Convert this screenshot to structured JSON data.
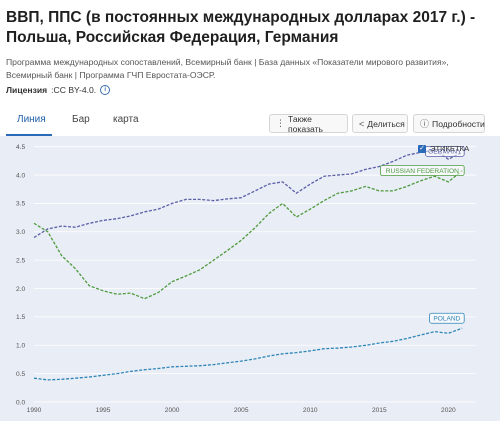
{
  "title": "ВВП, ППС (в постоянных международных долларах 2017 г.) - Польша, Российская Федерация, Германия",
  "source": "Программа международных сопоставлений, Всемирный банк | База данных «Показатели мирового развития», Всемирный банк | Программа ГЧП Евростата-ОЭСР.",
  "license": {
    "label": "Лицензия",
    "value": ":CC BY-4.0.",
    "icon": "info-icon"
  },
  "tabs": [
    {
      "label": "Линия",
      "active": true
    },
    {
      "label": "Бар",
      "active": false
    },
    {
      "label": "карта",
      "active": false
    }
  ],
  "toolbar": {
    "show_also": "Также показать",
    "share": "Делиться",
    "details": "Подробности"
  },
  "legend": {
    "label": "ЭТИКЕТКА",
    "checked": true
  },
  "colors": {
    "germany": "#5a5fa8",
    "russia": "#4e9a3c",
    "poland": "#2d86b8",
    "plot_bg": "#e9edf6",
    "grid": "#ffffff"
  },
  "chart_data": {
    "type": "line",
    "ylim": [
      0,
      4.6
    ],
    "xlim": [
      1990,
      2022
    ],
    "x_ticks": [
      "1990",
      "1995",
      "2000",
      "2005",
      "2010",
      "2015",
      "2020"
    ],
    "y_ticks": [
      "0.0",
      "0.5",
      "1.0",
      "1.5",
      "2.0",
      "2.5",
      "3.0",
      "3.5",
      "4.0",
      "4.5"
    ],
    "years": [
      1990,
      1991,
      1992,
      1993,
      1994,
      1995,
      1996,
      1997,
      1998,
      1999,
      2000,
      2001,
      2002,
      2003,
      2004,
      2005,
      2006,
      2007,
      2008,
      2009,
      2010,
      2011,
      2012,
      2013,
      2014,
      2015,
      2016,
      2017,
      2018,
      2019,
      2020,
      2021
    ],
    "series": [
      {
        "name": "GERMANY",
        "key": "germany",
        "values": [
          2.9,
          3.05,
          3.1,
          3.08,
          3.15,
          3.2,
          3.23,
          3.28,
          3.35,
          3.4,
          3.5,
          3.57,
          3.57,
          3.55,
          3.58,
          3.6,
          3.72,
          3.84,
          3.88,
          3.68,
          3.84,
          3.98,
          4.0,
          4.02,
          4.1,
          4.15,
          4.24,
          4.35,
          4.4,
          4.44,
          4.28,
          4.4
        ]
      },
      {
        "name": "RUSSIAN FEDERATION",
        "key": "russia",
        "values": [
          3.15,
          3.0,
          2.58,
          2.35,
          2.05,
          1.96,
          1.9,
          1.92,
          1.82,
          1.93,
          2.12,
          2.22,
          2.33,
          2.5,
          2.67,
          2.85,
          3.07,
          3.32,
          3.5,
          3.26,
          3.4,
          3.55,
          3.68,
          3.72,
          3.8,
          3.72,
          3.72,
          3.8,
          3.9,
          3.98,
          3.88,
          4.08
        ]
      },
      {
        "name": "POLAND",
        "key": "poland",
        "values": [
          0.42,
          0.39,
          0.4,
          0.42,
          0.44,
          0.47,
          0.5,
          0.54,
          0.57,
          0.59,
          0.62,
          0.63,
          0.64,
          0.66,
          0.69,
          0.72,
          0.76,
          0.81,
          0.85,
          0.87,
          0.9,
          0.94,
          0.95,
          0.97,
          1.0,
          1.04,
          1.07,
          1.12,
          1.18,
          1.24,
          1.21,
          1.3
        ]
      }
    ]
  }
}
